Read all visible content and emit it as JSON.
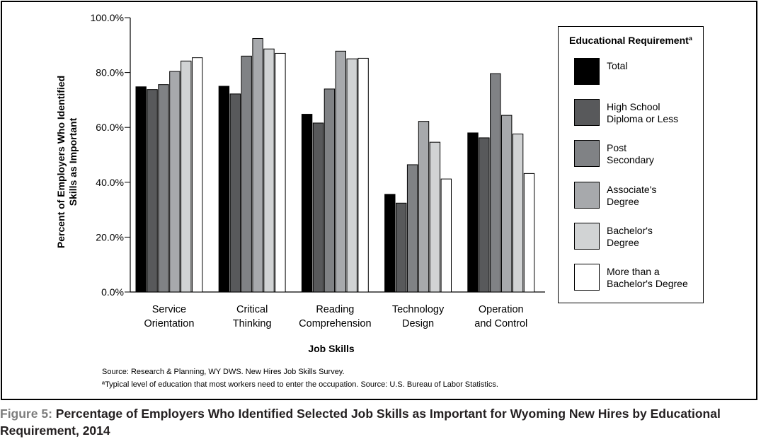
{
  "caption": {
    "prefix": "Figure 5:",
    "text": " Percentage of Employers Who Identified Selected Job Skills as Important for Wyoming New Hires by Educational Requirement, 2014"
  },
  "notes": {
    "source": "Source: Research & Planning, WY DWS. New Hires Job Skills Survey.",
    "footnote": "ªTypical level of education that most workers need to enter the occupation. Source: U.S. Bureau of Labor Statistics."
  },
  "legend": {
    "title": "Educational Requirementª"
  },
  "chart_data": {
    "type": "bar",
    "xlabel": "Job Skills",
    "ylabel": "Percent of Employers Who Identified Skills as Important",
    "ylim": [
      0,
      100
    ],
    "yticks": [
      "0.0%",
      "20.0%",
      "40.0%",
      "60.0%",
      "80.0%",
      "100.0%"
    ],
    "grid": false,
    "legend_position": "right",
    "categories": [
      "Service\nOrientation",
      "Critical\nThinking",
      "Reading\nComprehension",
      "Technology\nDesign",
      "Operation\nand Control"
    ],
    "series": [
      {
        "name": "Total",
        "color": "#000000",
        "values": [
          74.8,
          75.0,
          64.8,
          35.6,
          58.0
        ]
      },
      {
        "name": "High School\nDiploma or Less",
        "color": "#58595b",
        "values": [
          73.8,
          72.2,
          61.6,
          32.4,
          56.2
        ]
      },
      {
        "name": "Post\nSecondary",
        "color": "#808285",
        "values": [
          75.6,
          86.0,
          74.0,
          46.4,
          79.6
        ]
      },
      {
        "name": "Associate's\nDegree",
        "color": "#a7a9ac",
        "values": [
          80.4,
          92.4,
          87.8,
          62.2,
          64.4
        ]
      },
      {
        "name": "Bachelor's\nDegree",
        "color": "#d1d3d4",
        "values": [
          84.2,
          88.6,
          85.0,
          54.6,
          57.6
        ]
      },
      {
        "name": "More than a\nBachelor's Degree",
        "color": "#ffffff",
        "values": [
          85.4,
          87.0,
          85.2,
          41.2,
          43.2
        ]
      }
    ]
  }
}
